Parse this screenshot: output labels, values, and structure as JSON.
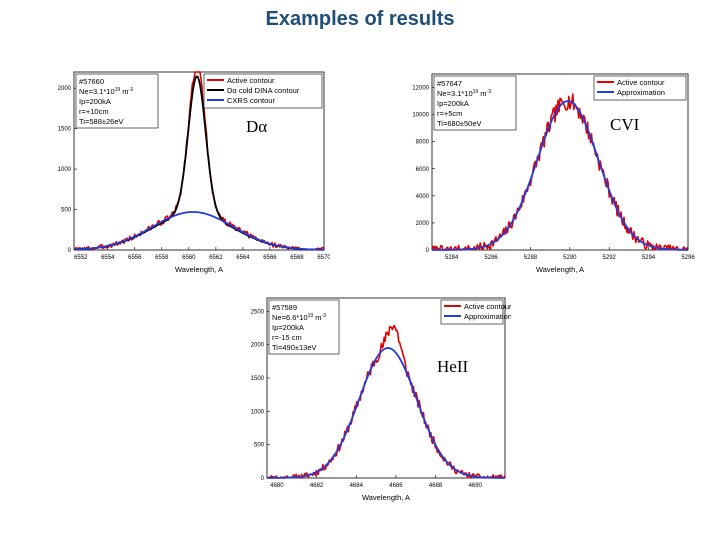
{
  "page": {
    "title": "Examples of results"
  },
  "chart_data": [
    {
      "type": "line",
      "title": "",
      "xlabel": "Wavelength, A",
      "ylabel": "",
      "xlim": [
        6551.5,
        6570
      ],
      "ylim": [
        0,
        2200
      ],
      "xticks": [
        6552,
        6554,
        6556,
        6558,
        6560,
        6562,
        6564,
        6566,
        6568,
        6570
      ],
      "yticks": [
        0,
        500,
        1000,
        1500,
        2000
      ],
      "info": [
        "#57660",
        "Ne=3.1*10^19 m^-3",
        "Ip=200kA",
        "r=+10cm",
        "Ti=588±26eV"
      ],
      "species": "Dα",
      "series": [
        {
          "name": "Active contour",
          "color": "#e00000",
          "type": "noisy",
          "components": [
            {
              "amp": 1800,
              "center": 6560.6,
              "sigma": 0.62
            },
            {
              "amp": 470,
              "center": 6560.3,
              "sigma": 3.0
            }
          ],
          "noise": 55,
          "seed": 3
        },
        {
          "name": "Dα cold DINA contour",
          "color": "#000000",
          "type": "smooth",
          "components": [
            {
              "amp": 1700,
              "center": 6560.6,
              "sigma": 0.64
            },
            {
              "amp": 450,
              "center": 6560.3,
              "sigma": 3.0
            }
          ]
        },
        {
          "name": "CXRS contour",
          "color": "#1f3ddb",
          "type": "smooth",
          "components": [
            {
              "amp": 470,
              "center": 6560.3,
              "sigma": 3.0
            }
          ]
        }
      ]
    },
    {
      "type": "line",
      "title": "",
      "xlabel": "Wavelength, A",
      "ylabel": "",
      "xlim": [
        5283,
        5296
      ],
      "ylim": [
        0,
        13000
      ],
      "xticks": [
        5284,
        5286,
        5288,
        5290,
        5292,
        5294,
        5296
      ],
      "yticks": [
        0,
        2000,
        4000,
        6000,
        8000,
        10000,
        12000
      ],
      "info": [
        "#57647",
        "Ne=3.1*10^19 m^-3",
        "Ip=200kA",
        "r=+5cm",
        "Ti=680±50eV"
      ],
      "species": "CVI",
      "series": [
        {
          "name": "Active contour",
          "color": "#e00000",
          "type": "noisy",
          "components": [
            {
              "amp": 11000,
              "center": 5289.9,
              "sigma": 1.55
            }
          ],
          "noise": 650,
          "seed": 7
        },
        {
          "name": "Approximation",
          "color": "#1f3ddb",
          "type": "smooth",
          "components": [
            {
              "amp": 11000,
              "center": 5289.9,
              "sigma": 1.55
            }
          ]
        }
      ]
    },
    {
      "type": "line",
      "title": "",
      "xlabel": "Wavelength, A",
      "ylabel": "",
      "xlim": [
        4679.5,
        4691.5
      ],
      "ylim": [
        0,
        2700
      ],
      "xticks": [
        4680,
        4682,
        4684,
        4686,
        4688,
        4690
      ],
      "yticks": [
        0,
        500,
        1000,
        1500,
        2000,
        2500
      ],
      "info": [
        "#57589",
        "Ne=6.6*10^19 m^-3",
        "Ip=200kA",
        "r=-15 cm",
        "Ti=490±13eV"
      ],
      "species": "HeII",
      "series": [
        {
          "name": "Active contour",
          "color": "#e00000",
          "type": "noisy",
          "components": [
            {
              "amp": 1950,
              "center": 4685.6,
              "sigma": 1.45
            },
            {
              "amp": 380,
              "center": 4685.9,
              "sigma": 0.3
            }
          ],
          "noise": 90,
          "seed": 11
        },
        {
          "name": "Approximation",
          "color": "#1f3ddb",
          "type": "smooth",
          "components": [
            {
              "amp": 1950,
              "center": 4685.6,
              "sigma": 1.45
            }
          ]
        }
      ]
    }
  ]
}
